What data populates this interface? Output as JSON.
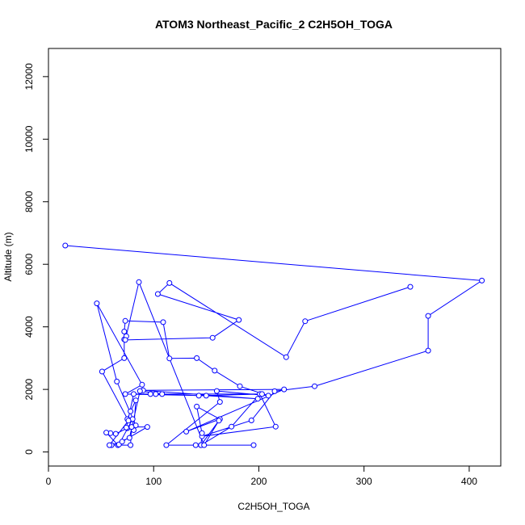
{
  "chart_data": {
    "type": "line",
    "title": "ATOM3 Northeast_Pacific_2 C2H5OH_TOGA",
    "xlabel": "C2H5OH_TOGA",
    "ylabel": "Altitude (m)",
    "xlim": [
      0,
      430
    ],
    "ylim": [
      -450,
      12900
    ],
    "x_ticks": [
      "0",
      "100",
      "200",
      "300",
      "400"
    ],
    "x_tick_values": [
      0,
      100,
      200,
      300,
      400
    ],
    "y_ticks": [
      "0",
      "2000",
      "4000",
      "6000",
      "8000",
      "10000",
      "12000"
    ],
    "y_tick_values": [
      0,
      2000,
      4000,
      6000,
      8000,
      10000,
      12000
    ],
    "line_color": "#0000ff",
    "marker": "open-circle",
    "series": [
      {
        "points": [
          [
            16,
            6600
          ],
          [
            412,
            5480
          ],
          [
            361,
            4350
          ],
          [
            361,
            3240
          ],
          [
            253,
            2100
          ],
          [
            215,
            1940
          ],
          [
            193,
            1010
          ],
          [
            146,
            500
          ],
          [
            216,
            810
          ],
          [
            201,
            1850
          ],
          [
            174,
            810
          ],
          [
            145,
            220
          ],
          [
            146,
            600
          ],
          [
            141,
            1450
          ],
          [
            163,
            1050
          ],
          [
            131,
            650
          ],
          [
            224,
            2000
          ],
          [
            90,
            1970
          ],
          [
            199,
            1700
          ],
          [
            150,
            1800
          ],
          [
            73,
            1850
          ],
          [
            89,
            2150
          ],
          [
            46,
            4750
          ],
          [
            65,
            2250
          ],
          [
            83,
            850
          ],
          [
            75,
            760
          ],
          [
            64,
            580
          ],
          [
            59,
            600
          ],
          [
            55,
            620
          ],
          [
            66,
            220
          ],
          [
            60,
            220
          ],
          [
            77,
            450
          ],
          [
            87,
            1950
          ],
          [
            108,
            1850
          ],
          [
            97,
            1850
          ],
          [
            102,
            1850
          ],
          [
            143,
            1800
          ],
          [
            203,
            1850
          ],
          [
            81,
            1850
          ],
          [
            74,
            780
          ],
          [
            81,
            700
          ],
          [
            83,
            1650
          ],
          [
            78,
            1300
          ],
          [
            75,
            1050
          ],
          [
            80,
            1050
          ],
          [
            67,
            240
          ],
          [
            70,
            330
          ],
          [
            94,
            800
          ],
          [
            79,
            800
          ],
          [
            78,
            220
          ],
          [
            58,
            220
          ],
          [
            76,
            1000
          ],
          [
            51,
            2570
          ],
          [
            72,
            3000
          ],
          [
            72,
            3600
          ],
          [
            74,
            3700
          ],
          [
            72,
            3850
          ],
          [
            73,
            4190
          ],
          [
            109,
            4150
          ],
          [
            115,
            2990
          ],
          [
            141,
            3000
          ],
          [
            158,
            2600
          ],
          [
            182,
            2100
          ],
          [
            209,
            1800
          ],
          [
            160,
            1950
          ],
          [
            163,
            1600
          ],
          [
            112,
            220
          ],
          [
            195,
            220
          ],
          [
            140,
            220
          ],
          [
            145,
            220
          ],
          [
            162,
            1000
          ],
          [
            148,
            220
          ],
          [
            86,
            5430
          ],
          [
            73,
            3580
          ],
          [
            156,
            3650
          ],
          [
            181,
            4220
          ],
          [
            104,
            5050
          ],
          [
            115,
            5400
          ],
          [
            226,
            3030
          ],
          [
            244,
            4180
          ],
          [
            344,
            5280
          ]
        ]
      }
    ]
  }
}
